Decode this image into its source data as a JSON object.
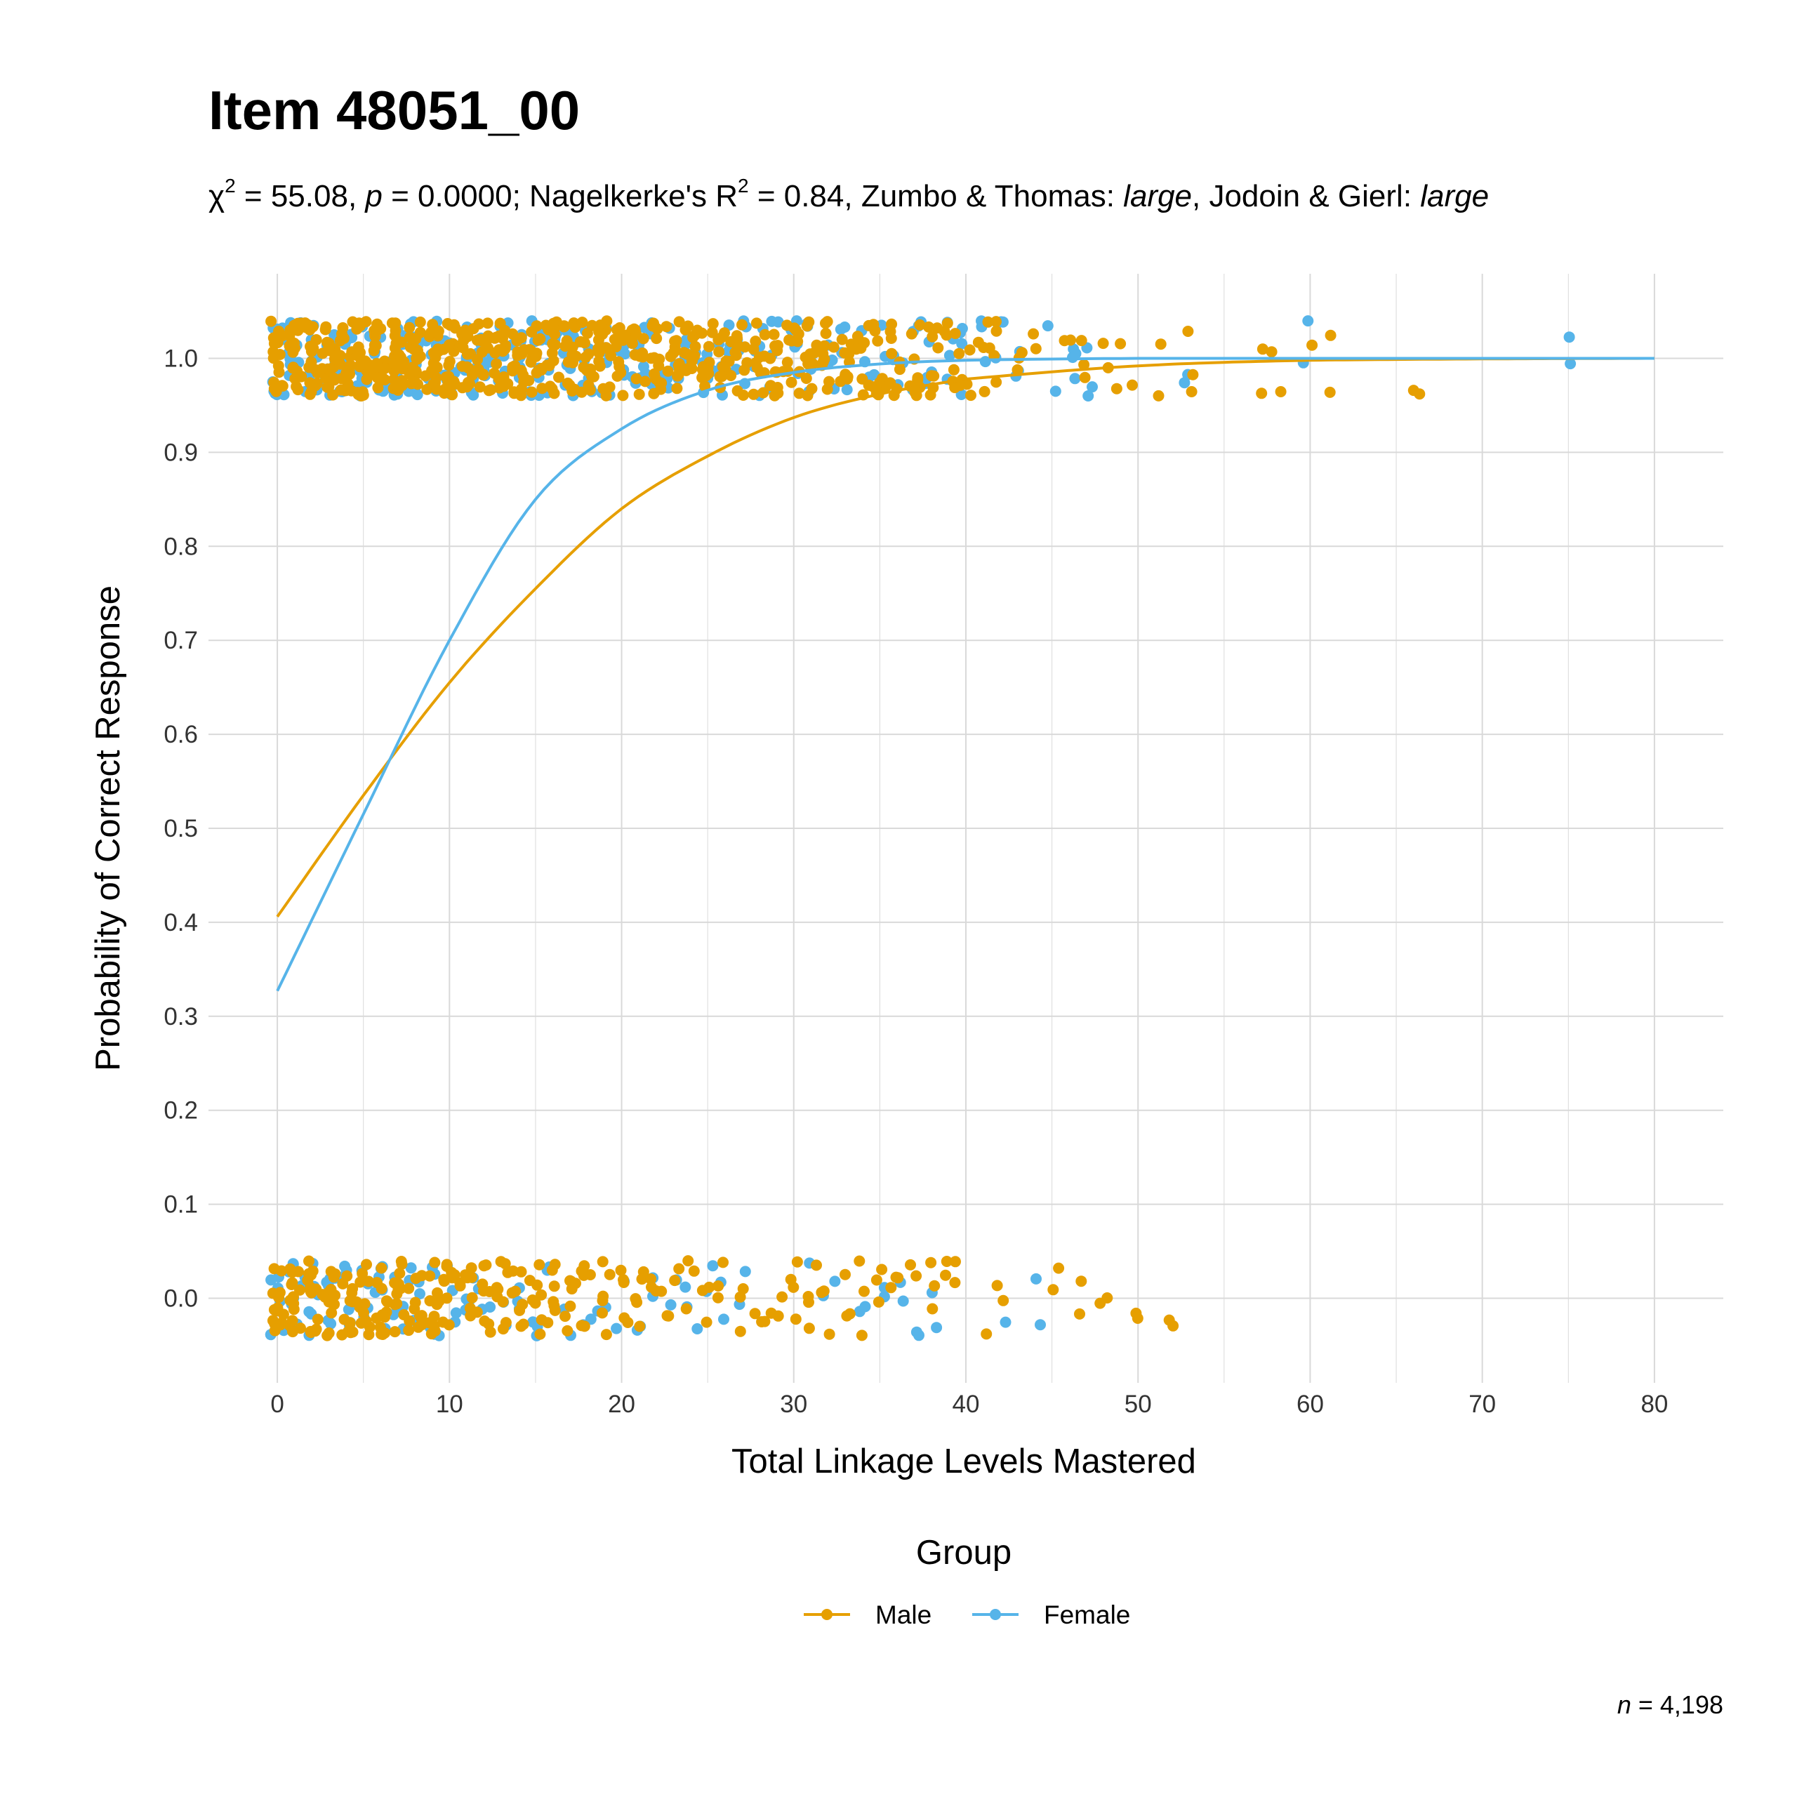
{
  "title": "Item 48051_00",
  "subtitle": {
    "chi_symbol": "χ",
    "chi_value": " = 55.08, ",
    "p_symbol": "p",
    "p_value": " = 0.0000; Nagelkerke's R",
    "r2_value": " = 0.84, Zumbo & Thomas: ",
    "zt_class": "large",
    "jg_label": ", Jodoin & Gierl: ",
    "jg_class": "large",
    "sup": "2"
  },
  "footnote": {
    "n_symbol": "n",
    "n_value": " = 4,198"
  },
  "colors": {
    "male": "#E69F00",
    "female": "#56B4E9",
    "grid": "#d9d9d9"
  },
  "chart_data": {
    "type": "scatter",
    "xlabel": "Total Linkage Levels Mastered",
    "ylabel": "Probability of Correct Response",
    "xlim": [
      -4,
      84
    ],
    "ylim": [
      -0.09,
      1.09
    ],
    "xticks": [
      0,
      10,
      20,
      30,
      40,
      50,
      60,
      70,
      80
    ],
    "yticks": [
      0.0,
      0.1,
      0.2,
      0.3,
      0.4,
      0.5,
      0.6,
      0.7,
      0.8,
      0.9,
      1.0
    ],
    "grid": true,
    "legend_title": "Group",
    "legend_position": "bottom",
    "curves": [
      {
        "name": "Male",
        "color": "#E69F00",
        "x_range": [
          0,
          80
        ],
        "points": [
          [
            0,
            0.406
          ],
          [
            5,
            0.535
          ],
          [
            10,
            0.655
          ],
          [
            15,
            0.755
          ],
          [
            20,
            0.84
          ],
          [
            25,
            0.896
          ],
          [
            30,
            0.937
          ],
          [
            35,
            0.962
          ],
          [
            40,
            0.978
          ],
          [
            50,
            0.992
          ],
          [
            60,
            0.998
          ],
          [
            80,
            1.0
          ]
        ]
      },
      {
        "name": "Female",
        "color": "#56B4E9",
        "x_range": [
          0,
          80
        ],
        "points": [
          [
            0,
            0.327
          ],
          [
            5,
            0.515
          ],
          [
            10,
            0.7
          ],
          [
            15,
            0.85
          ],
          [
            20,
            0.925
          ],
          [
            25,
            0.966
          ],
          [
            30,
            0.985
          ],
          [
            35,
            0.994
          ],
          [
            40,
            0.998
          ],
          [
            50,
            1.0
          ],
          [
            80,
            1.0
          ]
        ]
      }
    ],
    "points": {
      "jitter": 0.04,
      "correct": {
        "Male": [
          [
            0,
            20
          ],
          [
            1,
            20
          ],
          [
            2,
            20
          ],
          [
            3,
            20
          ],
          [
            4,
            20
          ],
          [
            5,
            20
          ],
          [
            6,
            20
          ],
          [
            7,
            20
          ],
          [
            8,
            20
          ],
          [
            9,
            20
          ],
          [
            10,
            20
          ],
          [
            11,
            18
          ],
          [
            12,
            18
          ],
          [
            13,
            18
          ],
          [
            14,
            18
          ],
          [
            15,
            18
          ],
          [
            16,
            17
          ],
          [
            17,
            16
          ],
          [
            18,
            16
          ],
          [
            19,
            16
          ],
          [
            20,
            15
          ],
          [
            21,
            15
          ],
          [
            22,
            14
          ],
          [
            23,
            14
          ],
          [
            24,
            14
          ],
          [
            25,
            13
          ],
          [
            26,
            13
          ],
          [
            27,
            12
          ],
          [
            28,
            12
          ],
          [
            29,
            12
          ],
          [
            30,
            12
          ],
          [
            31,
            11
          ],
          [
            32,
            11
          ],
          [
            33,
            10
          ],
          [
            34,
            10
          ],
          [
            35,
            10
          ],
          [
            36,
            9
          ],
          [
            37,
            9
          ],
          [
            38,
            8
          ],
          [
            39,
            7
          ],
          [
            40,
            6
          ],
          [
            41,
            5
          ],
          [
            42,
            4
          ],
          [
            43,
            3
          ],
          [
            44,
            2
          ],
          [
            46,
            2
          ],
          [
            47,
            3
          ],
          [
            48,
            2
          ],
          [
            49,
            2
          ],
          [
            50,
            1
          ],
          [
            51,
            2
          ],
          [
            53,
            3
          ],
          [
            57,
            2
          ],
          [
            58,
            2
          ],
          [
            60,
            1
          ],
          [
            61,
            2
          ],
          [
            66,
            2
          ]
        ],
        "Female": [
          [
            0,
            12
          ],
          [
            1,
            12
          ],
          [
            2,
            12
          ],
          [
            3,
            12
          ],
          [
            4,
            12
          ],
          [
            5,
            12
          ],
          [
            6,
            12
          ],
          [
            7,
            12
          ],
          [
            8,
            12
          ],
          [
            9,
            12
          ],
          [
            10,
            12
          ],
          [
            11,
            11
          ],
          [
            12,
            11
          ],
          [
            13,
            10
          ],
          [
            14,
            10
          ],
          [
            15,
            10
          ],
          [
            16,
            9
          ],
          [
            17,
            9
          ],
          [
            18,
            9
          ],
          [
            19,
            8
          ],
          [
            20,
            8
          ],
          [
            21,
            8
          ],
          [
            22,
            7
          ],
          [
            23,
            7
          ],
          [
            24,
            7
          ],
          [
            25,
            6
          ],
          [
            26,
            6
          ],
          [
            27,
            6
          ],
          [
            28,
            5
          ],
          [
            29,
            5
          ],
          [
            30,
            5
          ],
          [
            31,
            5
          ],
          [
            32,
            4
          ],
          [
            33,
            4
          ],
          [
            34,
            4
          ],
          [
            35,
            4
          ],
          [
            36,
            4
          ],
          [
            37,
            4
          ],
          [
            38,
            4
          ],
          [
            39,
            4
          ],
          [
            40,
            4
          ],
          [
            41,
            3
          ],
          [
            42,
            3
          ],
          [
            43,
            3
          ],
          [
            45,
            2
          ],
          [
            46,
            4
          ],
          [
            47,
            3
          ],
          [
            53,
            2
          ],
          [
            60,
            2
          ],
          [
            75,
            2
          ]
        ]
      },
      "incorrect": {
        "Male": [
          [
            0,
            14
          ],
          [
            1,
            14
          ],
          [
            2,
            14
          ],
          [
            3,
            14
          ],
          [
            4,
            13
          ],
          [
            5,
            13
          ],
          [
            6,
            13
          ],
          [
            7,
            12
          ],
          [
            8,
            12
          ],
          [
            9,
            11
          ],
          [
            10,
            11
          ],
          [
            11,
            10
          ],
          [
            12,
            9
          ],
          [
            13,
            9
          ],
          [
            14,
            8
          ],
          [
            15,
            8
          ],
          [
            16,
            7
          ],
          [
            17,
            7
          ],
          [
            18,
            6
          ],
          [
            19,
            6
          ],
          [
            20,
            5
          ],
          [
            21,
            5
          ],
          [
            22,
            4
          ],
          [
            23,
            4
          ],
          [
            24,
            3
          ],
          [
            25,
            3
          ],
          [
            26,
            3
          ],
          [
            27,
            3
          ],
          [
            28,
            3
          ],
          [
            29,
            3
          ],
          [
            30,
            4
          ],
          [
            31,
            4
          ],
          [
            32,
            3
          ],
          [
            33,
            3
          ],
          [
            34,
            3
          ],
          [
            35,
            3
          ],
          [
            36,
            3
          ],
          [
            37,
            2
          ],
          [
            38,
            3
          ],
          [
            39,
            4
          ],
          [
            41,
            1
          ],
          [
            42,
            2
          ],
          [
            45,
            2
          ],
          [
            47,
            2
          ],
          [
            48,
            2
          ],
          [
            50,
            2
          ],
          [
            52,
            2
          ]
        ],
        "Female": [
          [
            0,
            8
          ],
          [
            1,
            7
          ],
          [
            2,
            7
          ],
          [
            3,
            7
          ],
          [
            4,
            6
          ],
          [
            5,
            6
          ],
          [
            6,
            6
          ],
          [
            7,
            5
          ],
          [
            8,
            5
          ],
          [
            9,
            5
          ],
          [
            10,
            4
          ],
          [
            11,
            4
          ],
          [
            12,
            3
          ],
          [
            13,
            3
          ],
          [
            14,
            3
          ],
          [
            15,
            3
          ],
          [
            16,
            2
          ],
          [
            17,
            2
          ],
          [
            18,
            2
          ],
          [
            19,
            2
          ],
          [
            20,
            2
          ],
          [
            21,
            2
          ],
          [
            22,
            2
          ],
          [
            23,
            2
          ],
          [
            24,
            3
          ],
          [
            25,
            2
          ],
          [
            26,
            2
          ],
          [
            27,
            2
          ],
          [
            31,
            1
          ],
          [
            32,
            2
          ],
          [
            34,
            2
          ],
          [
            35,
            2
          ],
          [
            36,
            2
          ],
          [
            37,
            2
          ],
          [
            38,
            2
          ],
          [
            42,
            1
          ],
          [
            44,
            2
          ]
        ]
      }
    }
  }
}
